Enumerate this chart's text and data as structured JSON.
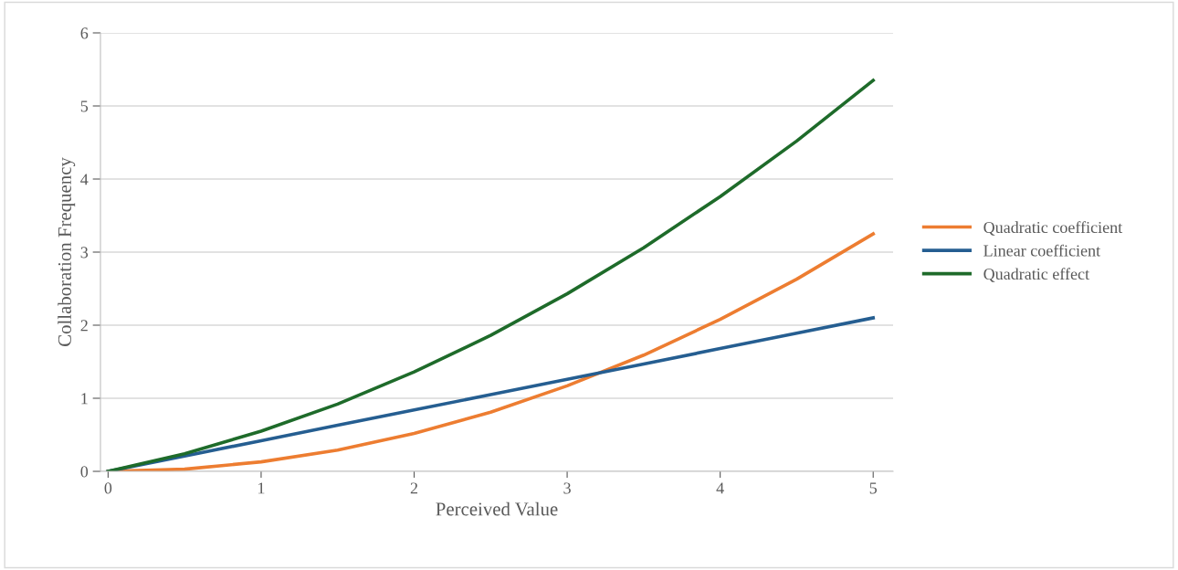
{
  "chart_data": {
    "type": "line",
    "xlabel": "Perceived Value",
    "ylabel": "Collaboration Frequency",
    "x": [
      0,
      0.5,
      1,
      1.5,
      2,
      2.5,
      3,
      3.5,
      4,
      4.5,
      5
    ],
    "series": [
      {
        "name": "Quadratic coefficient",
        "color": "#ed7d31",
        "values": [
          0,
          0.03,
          0.13,
          0.29,
          0.52,
          0.81,
          1.17,
          1.59,
          2.08,
          2.63,
          3.25
        ]
      },
      {
        "name": "Linear coefficient",
        "color": "#255e91",
        "values": [
          0,
          0.21,
          0.42,
          0.63,
          0.84,
          1.05,
          1.26,
          1.47,
          1.68,
          1.89,
          2.1
        ]
      },
      {
        "name": "Quadratic effect",
        "color": "#1e6b2a",
        "values": [
          0,
          0.24,
          0.55,
          0.92,
          1.36,
          1.86,
          2.43,
          3.06,
          3.76,
          4.52,
          5.35
        ]
      }
    ],
    "xlim": [
      -0.05,
      5.13
    ],
    "xticks": [
      0,
      1,
      2,
      3,
      4,
      5
    ],
    "ylim": [
      0,
      6
    ],
    "yticks": [
      0,
      1,
      2,
      3,
      4,
      5,
      6
    ],
    "grid": "y",
    "legend": "right",
    "marker": "none",
    "line_style": "solid"
  }
}
